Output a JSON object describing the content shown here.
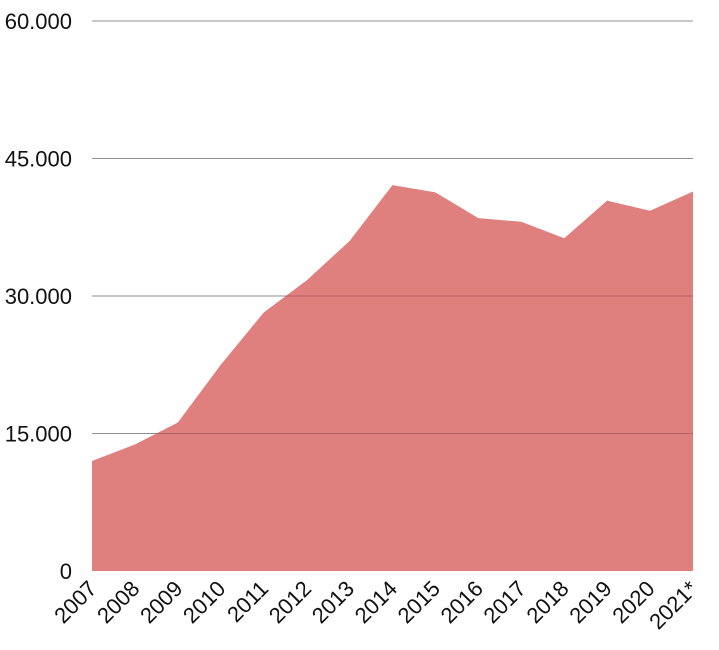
{
  "chart_data": {
    "type": "area",
    "title": "",
    "xlabel": "",
    "ylabel": "",
    "categories": [
      "2007",
      "2008",
      "2009",
      "2010",
      "2011",
      "2012",
      "2013",
      "2014",
      "2015",
      "2016",
      "2017",
      "2018",
      "2019",
      "2020",
      "2021*"
    ],
    "values": [
      12000,
      13800,
      16200,
      22500,
      28200,
      31700,
      36000,
      42100,
      41300,
      38500,
      38100,
      36300,
      40400,
      39300,
      41400
    ],
    "yticks": [
      0,
      15000,
      30000,
      45000,
      60000
    ],
    "ytick_labels": [
      "0",
      "15.000",
      "30.000",
      "45.000",
      "60.000"
    ],
    "ylim": [
      0,
      60000
    ],
    "grid": true,
    "legend": "none",
    "colors": {
      "fill": "#df7f7e",
      "grid": "#b9b9b9",
      "text": "#111111"
    }
  }
}
